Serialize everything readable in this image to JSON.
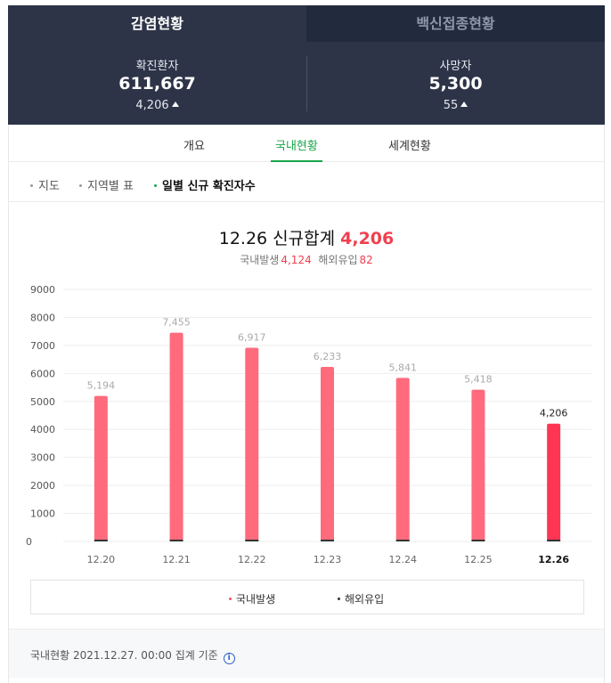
{
  "top_tabs": {
    "active": "감염현황",
    "inactive": "백신접종현황"
  },
  "stats": {
    "confirmed": {
      "label": "확진환자",
      "value": "611,667",
      "delta": "4,206"
    },
    "deaths": {
      "label": "사망자",
      "value": "5,300",
      "delta": "55"
    }
  },
  "sub_tabs": [
    "개요",
    "국내현황",
    "세계현황"
  ],
  "filters": [
    "지도",
    "지역별 표",
    "일별 신규 확진자수"
  ],
  "headline": {
    "date_label": "12.26 신규합계",
    "total": "4,206"
  },
  "subline": {
    "domestic_label": "국내발생",
    "domestic_value": "4,124",
    "overseas_label": "해외유입",
    "overseas_value": "82"
  },
  "legend": {
    "domestic": "국내발생",
    "overseas": "해외유입"
  },
  "footer": {
    "text": "국내현황 2021.12.27. 00:00 집계 기준",
    "info_glyph": "i"
  },
  "colors": {
    "domestic_bar": "#ff6b7d",
    "highlight_bar": "#ff3553",
    "overseas_bar": "#333333",
    "accent": "#18a54a"
  },
  "chart_data": {
    "type": "bar",
    "categories": [
      "12.20",
      "12.21",
      "12.22",
      "12.23",
      "12.24",
      "12.25",
      "12.26"
    ],
    "series": [
      {
        "name": "국내발생",
        "values": [
          5194,
          7455,
          6917,
          6233,
          5841,
          5418,
          4124
        ]
      },
      {
        "name": "해외유입",
        "values": [
          null,
          null,
          null,
          null,
          null,
          null,
          82
        ]
      }
    ],
    "data_labels": [
      "5,194",
      "7,455",
      "6,917",
      "6,233",
      "5,841",
      "5,418",
      "4,206"
    ],
    "yticks": [
      "9000",
      "8000",
      "7000",
      "6000",
      "5000",
      "4000",
      "3000",
      "2000",
      "1000",
      "0"
    ],
    "ylim": [
      0,
      9000
    ],
    "highlight_index": 6,
    "grid": true,
    "legend_position": "bottom"
  }
}
